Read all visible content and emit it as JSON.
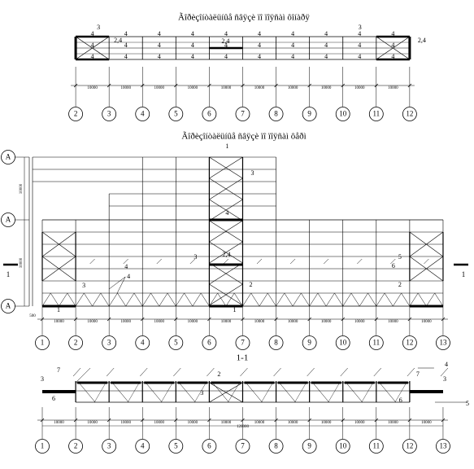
{
  "plan_top": {
    "title": "Ãîðèçîíòàëüíûå ñâÿçè ïî ïîÿñàì ôîíàðÿ",
    "axes": [
      "2",
      "3",
      "4",
      "5",
      "6",
      "7",
      "8",
      "9",
      "10",
      "11",
      "12"
    ],
    "bay_dimension": "10000",
    "member_label": "4",
    "callouts": [
      "3",
      "2,4",
      "2,4",
      "3",
      "2,4"
    ]
  },
  "plan_middle": {
    "title": "Ãîðèçîíòàëüíûå ñâÿçè ïî ïîÿñàì ôåðì",
    "axes": [
      "1",
      "2",
      "3",
      "4",
      "5",
      "6",
      "7",
      "8",
      "9",
      "10",
      "11",
      "12",
      "13"
    ],
    "row_axes": [
      "A",
      "A",
      "A"
    ],
    "bay_dimension": "10000",
    "edge_dimension": "500",
    "section_mark": "1",
    "callouts": [
      "1",
      "3",
      "4",
      "2,4",
      "3",
      "4",
      "5",
      "6",
      "2",
      "2",
      "3",
      "1",
      "1",
      "4"
    ]
  },
  "section": {
    "title": "1-1",
    "axes": [
      "1",
      "2",
      "3",
      "4",
      "5",
      "6",
      "7",
      "8",
      "9",
      "10",
      "11",
      "12",
      "13"
    ],
    "bay_dimension": "10000",
    "total_dimension": "120000",
    "callouts": [
      "3",
      "7",
      "6",
      "2",
      "3",
      "7",
      "4",
      "3",
      "6",
      "5"
    ]
  }
}
